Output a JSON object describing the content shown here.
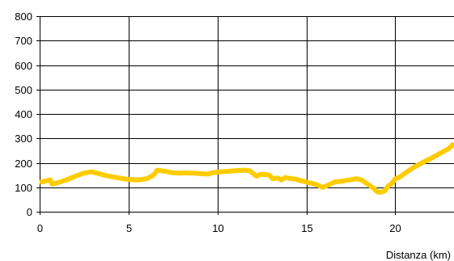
{
  "chart_data": {
    "type": "line",
    "title": "",
    "xlabel": "Distanza (km)",
    "ylabel": "",
    "xlim": [
      0,
      23.3
    ],
    "ylim": [
      0,
      800
    ],
    "xticks": [
      0,
      5,
      10,
      15,
      20
    ],
    "yticks": [
      0,
      100,
      200,
      300,
      400,
      500,
      600,
      700,
      800
    ],
    "grid": true,
    "legend": "none",
    "colors": {
      "line": "#FFCC00",
      "grid": "#000000",
      "background": "#FFFFFF"
    },
    "series": [
      {
        "x": [
          0,
          0.3,
          0.6,
          0.7,
          1.0,
          1.5,
          2.0,
          2.5,
          2.9,
          3.2,
          3.7,
          4.3,
          5.0,
          5.6,
          6.0,
          6.3,
          6.5,
          6.6,
          6.8,
          7.1,
          7.4,
          7.8,
          8.3,
          8.8,
          9.2,
          9.5,
          9.6,
          10.0,
          10.5,
          11.0,
          11.5,
          11.8,
          12.1,
          12.2,
          12.4,
          12.7,
          12.9,
          13.1,
          13.4,
          13.6,
          13.8,
          14.0,
          14.4,
          14.8,
          15.2,
          15.6,
          15.9,
          16.2,
          16.6,
          17.0,
          17.4,
          17.8,
          18.1,
          18.5,
          18.8,
          19.0,
          19.2,
          19.4,
          19.6,
          19.8,
          20.0,
          20.2,
          20.5,
          21.0,
          21.5,
          22.0,
          22.5,
          23.0,
          23.3
        ],
        "y": [
          120,
          125,
          130,
          113,
          118,
          130,
          145,
          158,
          163,
          158,
          148,
          140,
          132,
          130,
          135,
          145,
          158,
          170,
          168,
          165,
          160,
          158,
          159,
          157,
          155,
          154,
          158,
          162,
          165,
          168,
          170,
          168,
          150,
          145,
          153,
          152,
          150,
          135,
          138,
          130,
          140,
          137,
          133,
          125,
          118,
          110,
          100,
          108,
          122,
          125,
          130,
          135,
          130,
          110,
          95,
          80,
          80,
          85,
          105,
          115,
          135,
          140,
          155,
          180,
          200,
          218,
          238,
          258,
          280
        ]
      }
    ]
  }
}
